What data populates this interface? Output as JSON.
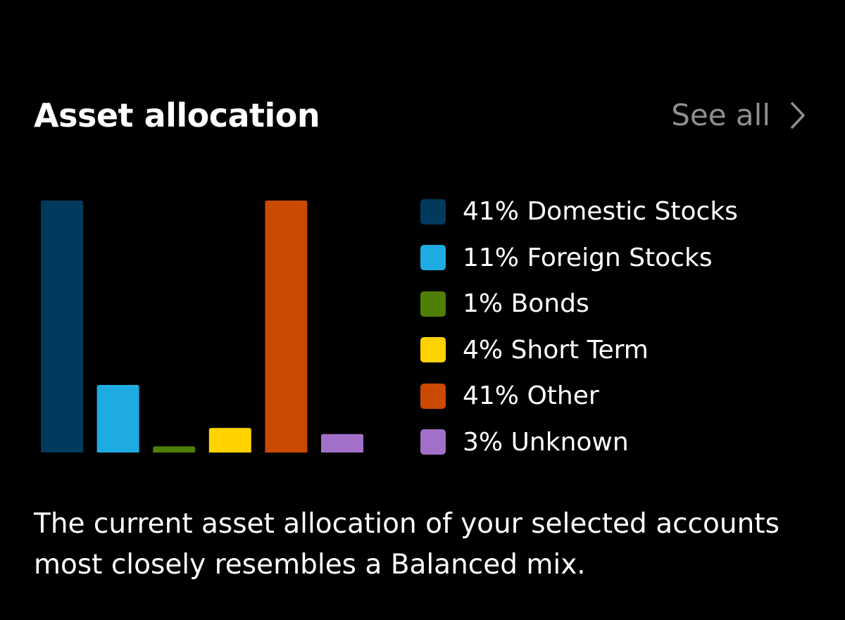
{
  "header": {
    "title": "Asset allocation",
    "see_all_label": "See all"
  },
  "chart_data": {
    "type": "bar",
    "categories": [
      "Domestic Stocks",
      "Foreign Stocks",
      "Bonds",
      "Short Term",
      "Other",
      "Unknown"
    ],
    "values": [
      41,
      11,
      1,
      4,
      41,
      3
    ],
    "colors": [
      "#003a5d",
      "#1eabe2",
      "#4f7f05",
      "#ffd200",
      "#c94a00",
      "#a370c9"
    ],
    "ylim": [
      0,
      41
    ],
    "grid": false
  },
  "legend": {
    "items": [
      {
        "label": "41% Domestic Stocks",
        "color": "#003a5d"
      },
      {
        "label": "11% Foreign Stocks",
        "color": "#1eabe2"
      },
      {
        "label": "1% Bonds",
        "color": "#4f7f05"
      },
      {
        "label": "4% Short Term",
        "color": "#ffd200"
      },
      {
        "label": "41% Other",
        "color": "#c94a00"
      },
      {
        "label": "3% Unknown",
        "color": "#a370c9"
      }
    ]
  },
  "summary": {
    "text": "The current asset allocation of your selected accounts most closely resembles a Balanced mix."
  },
  "icons": {
    "see_all": "chevron-right-icon"
  }
}
